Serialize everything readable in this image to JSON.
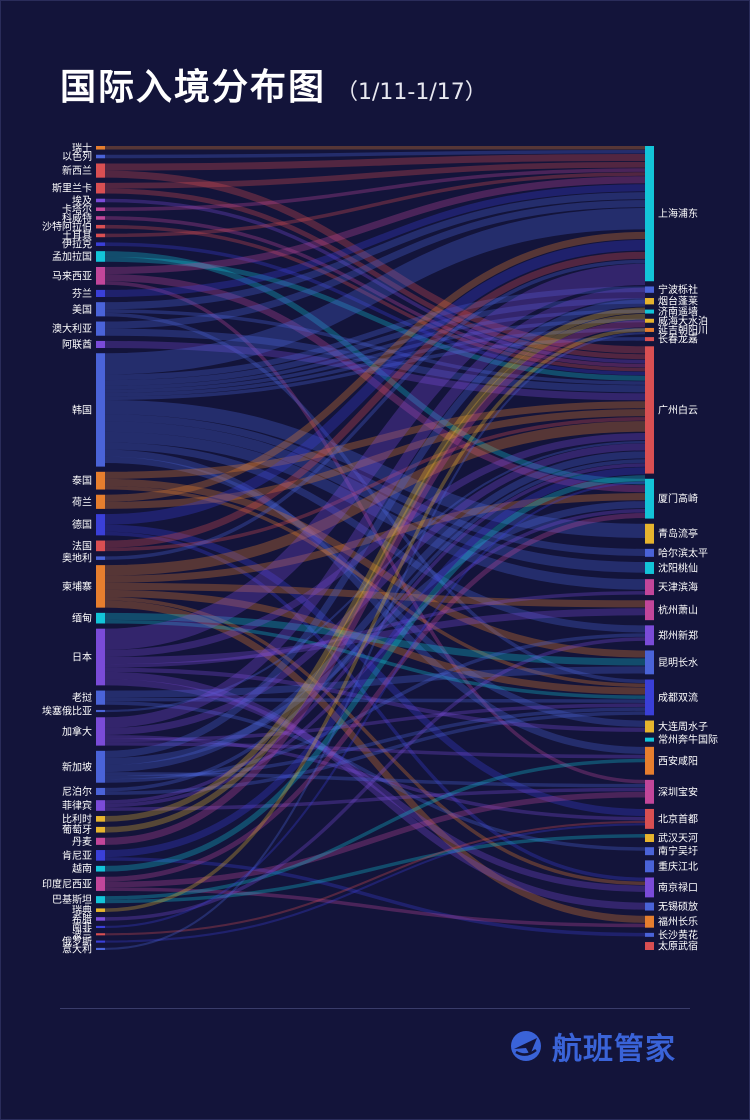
{
  "header": {
    "title": "国际入境分布图",
    "subtitle": "（1/11-1/17）"
  },
  "brand": {
    "name": "航班管家",
    "icon": "plane-logo-icon",
    "color": "#3a63d8"
  },
  "chart_data": {
    "type": "sankey",
    "sources": [
      {
        "name": "瑞士",
        "value": 0.5,
        "color": "#e67e2e"
      },
      {
        "name": "以色列",
        "value": 0.5,
        "color": "#4a63d8"
      },
      {
        "name": "新西兰",
        "value": 2,
        "color": "#d94f52"
      },
      {
        "name": "斯里兰卡",
        "value": 1.5,
        "color": "#d94f52"
      },
      {
        "name": "埃及",
        "value": 0.5,
        "color": "#7a4bd8"
      },
      {
        "name": "卡塔尔",
        "value": 0.5,
        "color": "#c2469a"
      },
      {
        "name": "科威特",
        "value": 0.5,
        "color": "#c2469a"
      },
      {
        "name": "沙特阿拉伯",
        "value": 0.5,
        "color": "#d94f52"
      },
      {
        "name": "土耳其",
        "value": 0.5,
        "color": "#d94f52"
      },
      {
        "name": "伊拉克",
        "value": 0.5,
        "color": "#3a3fd8"
      },
      {
        "name": "孟加拉国",
        "value": 1.5,
        "color": "#13c4d8"
      },
      {
        "name": "马来西亚",
        "value": 2.5,
        "color": "#c2469a"
      },
      {
        "name": "芬兰",
        "value": 1,
        "color": "#3a3fd8"
      },
      {
        "name": "美国",
        "value": 2,
        "color": "#4a63d8"
      },
      {
        "name": "澳大利亚",
        "value": 2,
        "color": "#4a63d8"
      },
      {
        "name": "阿联酋",
        "value": 1,
        "color": "#7a4bd8"
      },
      {
        "name": "韩国",
        "value": 16,
        "color": "#4a63d8"
      },
      {
        "name": "泰国",
        "value": 2.5,
        "color": "#e67e2e"
      },
      {
        "name": "荷兰",
        "value": 2,
        "color": "#e67e2e"
      },
      {
        "name": "德国",
        "value": 3,
        "color": "#3a3fd8"
      },
      {
        "name": "法国",
        "value": 1.5,
        "color": "#d94f52"
      },
      {
        "name": "奥地利",
        "value": 0.5,
        "color": "#4a63d8"
      },
      {
        "name": "柬埔寨",
        "value": 6,
        "color": "#e67e2e"
      },
      {
        "name": "缅甸",
        "value": 1.5,
        "color": "#13c4d8"
      },
      {
        "name": "日本",
        "value": 8,
        "color": "#7a4bd8"
      },
      {
        "name": "老挝",
        "value": 2,
        "color": "#4a63d8"
      },
      {
        "name": "埃塞俄比亚",
        "value": 0.3,
        "color": "#4a63d8"
      },
      {
        "name": "加拿大",
        "value": 4,
        "color": "#7a4bd8"
      },
      {
        "name": "新加坡",
        "value": 4.5,
        "color": "#4a63d8"
      },
      {
        "name": "尼泊尔",
        "value": 1,
        "color": "#4a63d8"
      },
      {
        "name": "菲律宾",
        "value": 1.5,
        "color": "#7a4bd8"
      },
      {
        "name": "比利时",
        "value": 0.8,
        "color": "#e6b42e"
      },
      {
        "name": "葡萄牙",
        "value": 0.8,
        "color": "#e6b42e"
      },
      {
        "name": "丹麦",
        "value": 1,
        "color": "#c2469a"
      },
      {
        "name": "肯尼亚",
        "value": 1.5,
        "color": "#3a3fd8"
      },
      {
        "name": "越南",
        "value": 0.8,
        "color": "#13c4d8"
      },
      {
        "name": "印度尼西亚",
        "value": 2,
        "color": "#c2469a"
      },
      {
        "name": "巴基斯坦",
        "value": 1,
        "color": "#13c4d8"
      },
      {
        "name": "瑞典",
        "value": 0.5,
        "color": "#e6b42e"
      },
      {
        "name": "希腊",
        "value": 0.5,
        "color": "#7a4bd8"
      },
      {
        "name": "南非",
        "value": 0.3,
        "color": "#3a3fd8"
      },
      {
        "name": "波兰",
        "value": 0.3,
        "color": "#d94f52"
      },
      {
        "name": "俄罗斯",
        "value": 0.3,
        "color": "#3a3fd8"
      },
      {
        "name": "意大利",
        "value": 0.3,
        "color": "#4a63d8"
      }
    ],
    "targets": [
      {
        "name": "上海浦东",
        "value": 17,
        "color": "#13c4d8"
      },
      {
        "name": "宁波栎社",
        "value": 0.8,
        "color": "#4a63d8"
      },
      {
        "name": "烟台蓬莱",
        "value": 0.8,
        "color": "#e6b42e"
      },
      {
        "name": "济南遥墙",
        "value": 0.5,
        "color": "#13c4d8"
      },
      {
        "name": "威海大水泊",
        "value": 0.5,
        "color": "#e6b42e"
      },
      {
        "name": "延吉朝阳川",
        "value": 0.5,
        "color": "#e67e2e"
      },
      {
        "name": "长春龙嘉",
        "value": 0.5,
        "color": "#d94f52"
      },
      {
        "name": "广州白云",
        "value": 16,
        "color": "#d94f52"
      },
      {
        "name": "厦门高崎",
        "value": 5,
        "color": "#13c4d8"
      },
      {
        "name": "青岛流亭",
        "value": 2.5,
        "color": "#e6b42e"
      },
      {
        "name": "哈尔滨太平",
        "value": 1,
        "color": "#4a63d8"
      },
      {
        "name": "沈阳桃仙",
        "value": 1.5,
        "color": "#13c4d8"
      },
      {
        "name": "天津滨海",
        "value": 2,
        "color": "#c2469a"
      },
      {
        "name": "杭州萧山",
        "value": 2.5,
        "color": "#c2469a"
      },
      {
        "name": "郑州新郑",
        "value": 2.5,
        "color": "#7a4bd8"
      },
      {
        "name": "昆明长水",
        "value": 3,
        "color": "#4a63d8"
      },
      {
        "name": "成都双流",
        "value": 4.5,
        "color": "#3a3fd8"
      },
      {
        "name": "大连周水子",
        "value": 1.5,
        "color": "#e6b42e"
      },
      {
        "name": "常州奔牛国际",
        "value": 0.5,
        "color": "#13c4d8"
      },
      {
        "name": "西安咸阳",
        "value": 3.5,
        "color": "#e67e2e"
      },
      {
        "name": "深圳宝安",
        "value": 3,
        "color": "#c2469a"
      },
      {
        "name": "北京首都",
        "value": 2.5,
        "color": "#d94f52"
      },
      {
        "name": "武汉天河",
        "value": 1,
        "color": "#e6b42e"
      },
      {
        "name": "南宁吴圩",
        "value": 1,
        "color": "#4a63d8"
      },
      {
        "name": "重庆江北",
        "value": 1.5,
        "color": "#4a63d8"
      },
      {
        "name": "南京禄口",
        "value": 2.5,
        "color": "#7a4bd8"
      },
      {
        "name": "无锡硕放",
        "value": 1,
        "color": "#4a63d8"
      },
      {
        "name": "福州长乐",
        "value": 1.5,
        "color": "#e67e2e"
      },
      {
        "name": "长沙黄花",
        "value": 0.5,
        "color": "#4a63d8"
      },
      {
        "name": "太原武宿",
        "value": 1,
        "color": "#d94f52"
      }
    ],
    "links": [
      [
        "瑞士",
        "上海浦东",
        0.5
      ],
      [
        "以色列",
        "上海浦东",
        0.5
      ],
      [
        "新西兰",
        "上海浦东",
        1
      ],
      [
        "新西兰",
        "广州白云",
        1
      ],
      [
        "斯里兰卡",
        "上海浦东",
        0.8
      ],
      [
        "斯里兰卡",
        "广州白云",
        0.7
      ],
      [
        "埃及",
        "广州白云",
        0.5
      ],
      [
        "卡塔尔",
        "上海浦东",
        0.5
      ],
      [
        "科威特",
        "广州白云",
        0.5
      ],
      [
        "沙特阿拉伯",
        "广州白云",
        0.5
      ],
      [
        "土耳其",
        "上海浦东",
        0.5
      ],
      [
        "伊拉克",
        "广州白云",
        0.5
      ],
      [
        "孟加拉国",
        "厦门高崎",
        0.8
      ],
      [
        "孟加拉国",
        "广州白云",
        0.7
      ],
      [
        "马来西亚",
        "上海浦东",
        1
      ],
      [
        "马来西亚",
        "厦门高崎",
        1
      ],
      [
        "马来西亚",
        "深圳宝安",
        0.5
      ],
      [
        "芬兰",
        "上海浦东",
        1
      ],
      [
        "美国",
        "上海浦东",
        1
      ],
      [
        "美国",
        "广州白云",
        0.5
      ],
      [
        "美国",
        "成都双流",
        0.5
      ],
      [
        "澳大利亚",
        "上海浦东",
        1
      ],
      [
        "澳大利亚",
        "广州白云",
        1
      ],
      [
        "阿联酋",
        "广州白云",
        1
      ],
      [
        "韩国",
        "上海浦东",
        3
      ],
      [
        "韩国",
        "宁波栎社",
        0.8
      ],
      [
        "韩国",
        "烟台蓬莱",
        0.8
      ],
      [
        "韩国",
        "济南遥墙",
        0.5
      ],
      [
        "韩国",
        "威海大水泊",
        0.5
      ],
      [
        "韩国",
        "延吉朝阳川",
        0.5
      ],
      [
        "韩国",
        "长春龙嘉",
        0.5
      ],
      [
        "韩国",
        "青岛流亭",
        2
      ],
      [
        "韩国",
        "哈尔滨太平",
        1
      ],
      [
        "韩国",
        "沈阳桃仙",
        1.5
      ],
      [
        "韩国",
        "天津滨海",
        1.5
      ],
      [
        "韩国",
        "郑州新郑",
        1
      ],
      [
        "韩国",
        "西安咸阳",
        1
      ],
      [
        "韩国",
        "大连周水子",
        0.9
      ],
      [
        "泰国",
        "广州白云",
        1
      ],
      [
        "泰国",
        "昆明长水",
        1
      ],
      [
        "泰国",
        "成都双流",
        0.5
      ],
      [
        "荷兰",
        "上海浦东",
        1
      ],
      [
        "荷兰",
        "广州白云",
        1
      ],
      [
        "德国",
        "上海浦东",
        1.5
      ],
      [
        "德国",
        "北京首都",
        1
      ],
      [
        "德国",
        "南京禄口",
        0.5
      ],
      [
        "法国",
        "上海浦东",
        1
      ],
      [
        "法国",
        "广州白云",
        0.5
      ],
      [
        "奥地利",
        "上海浦东",
        0.5
      ],
      [
        "柬埔寨",
        "广州白云",
        1.5
      ],
      [
        "柬埔寨",
        "厦门高崎",
        1
      ],
      [
        "柬埔寨",
        "杭州萧山",
        1
      ],
      [
        "柬埔寨",
        "成都双流",
        1
      ],
      [
        "柬埔寨",
        "南京禄口",
        0.5
      ],
      [
        "柬埔寨",
        "福州长乐",
        1
      ],
      [
        "缅甸",
        "昆明长水",
        1
      ],
      [
        "缅甸",
        "成都双流",
        0.5
      ],
      [
        "日本",
        "上海浦东",
        3
      ],
      [
        "日本",
        "广州白云",
        1
      ],
      [
        "日本",
        "杭州萧山",
        1
      ],
      [
        "日本",
        "天津滨海",
        0.5
      ],
      [
        "日本",
        "大连周水子",
        0.6
      ],
      [
        "日本",
        "无锡硕放",
        1
      ],
      [
        "日本",
        "南京禄口",
        0.9
      ],
      [
        "老挝",
        "昆明长水",
        1
      ],
      [
        "老挝",
        "成都双流",
        0.5
      ],
      [
        "老挝",
        "南宁吴圩",
        0.5
      ],
      [
        "埃塞俄比亚",
        "广州白云",
        0.3
      ],
      [
        "加拿大",
        "上海浦东",
        1.5
      ],
      [
        "加拿大",
        "广州白云",
        1
      ],
      [
        "加拿大",
        "北京首都",
        0.5
      ],
      [
        "加拿大",
        "成都双流",
        0.5
      ],
      [
        "加拿大",
        "西安咸阳",
        0.5
      ],
      [
        "新加坡",
        "上海浦东",
        1
      ],
      [
        "新加坡",
        "厦门高崎",
        1
      ],
      [
        "新加坡",
        "广州白云",
        1
      ],
      [
        "新加坡",
        "深圳宝安",
        0.5
      ],
      [
        "新加坡",
        "成都双流",
        0.5
      ],
      [
        "新加坡",
        "郑州新郑",
        0.5
      ],
      [
        "尼泊尔",
        "广州白云",
        0.5
      ],
      [
        "尼泊尔",
        "成都双流",
        0.5
      ],
      [
        "菲律宾",
        "广州白云",
        0.5
      ],
      [
        "菲律宾",
        "厦门高崎",
        0.5
      ],
      [
        "菲律宾",
        "深圳宝安",
        0.5
      ],
      [
        "比利时",
        "上海浦东",
        0.8
      ],
      [
        "葡萄牙",
        "上海浦东",
        0.8
      ],
      [
        "丹麦",
        "上海浦东",
        1
      ],
      [
        "肯尼亚",
        "广州白云",
        1
      ],
      [
        "肯尼亚",
        "长沙黄花",
        0.5
      ],
      [
        "越南",
        "广州白云",
        0.8
      ],
      [
        "印度尼西亚",
        "厦门高崎",
        0.7
      ],
      [
        "印度尼西亚",
        "深圳宝安",
        0.8
      ],
      [
        "印度尼西亚",
        "福州长乐",
        0.5
      ],
      [
        "巴基斯坦",
        "西安咸阳",
        0.5
      ],
      [
        "巴基斯坦",
        "武汉天河",
        0.5
      ],
      [
        "瑞典",
        "上海浦东",
        0.5
      ],
      [
        "希腊",
        "郑州新郑",
        0.5
      ],
      [
        "南非",
        "广州白云",
        0.3
      ],
      [
        "波兰",
        "北京首都",
        0.3
      ],
      [
        "俄罗斯",
        "北京首都",
        0.3
      ],
      [
        "意大利",
        "上海浦东",
        0.3
      ]
    ]
  }
}
